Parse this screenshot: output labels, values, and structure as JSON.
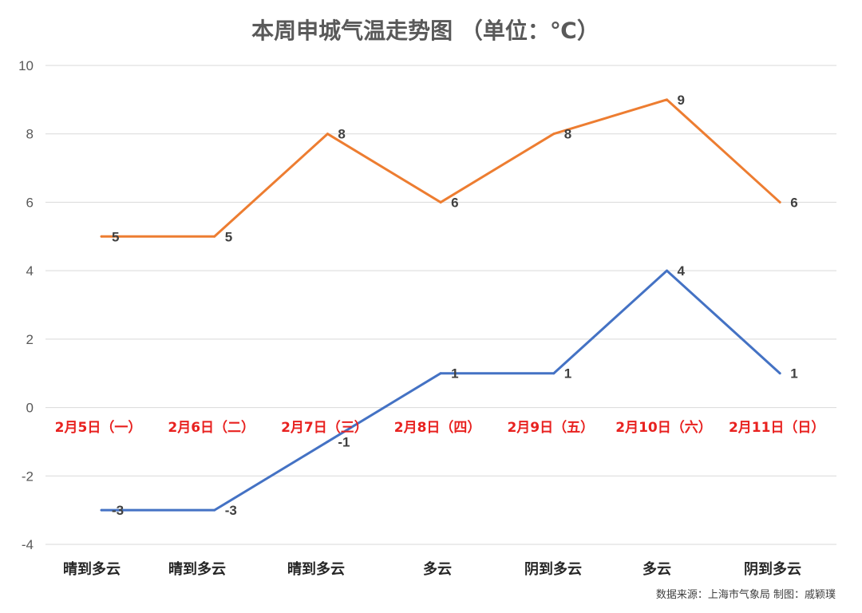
{
  "chart_data": {
    "type": "line",
    "title": "本周申城气温走势图 （单位：℃）",
    "categories": [
      "2月5日（一）",
      "2月6日（二）",
      "2月7日（三）",
      "2月8日（四）",
      "2月9日（五）",
      "2月10日（六）",
      "2月11日（日）"
    ],
    "weather": [
      "晴到多云",
      "晴到多云",
      "晴到多云",
      "多云",
      "阴到多云",
      "多云",
      "阴到多云"
    ],
    "series": [
      {
        "values": [
          5,
          5,
          8,
          6,
          8,
          9,
          6
        ],
        "color": "#ed7d31"
      },
      {
        "values": [
          -3,
          -3,
          -1,
          1,
          1,
          4,
          1
        ],
        "color": "#4472c4"
      }
    ],
    "ylim": [
      -4,
      10
    ],
    "yticks": [
      10,
      8,
      6,
      4,
      2,
      0,
      -2,
      -4
    ],
    "grid": true,
    "category_label_color": "#e8211f"
  },
  "footer": {
    "source": "数据来源：上海市气象局   制图：戚颖璞"
  }
}
